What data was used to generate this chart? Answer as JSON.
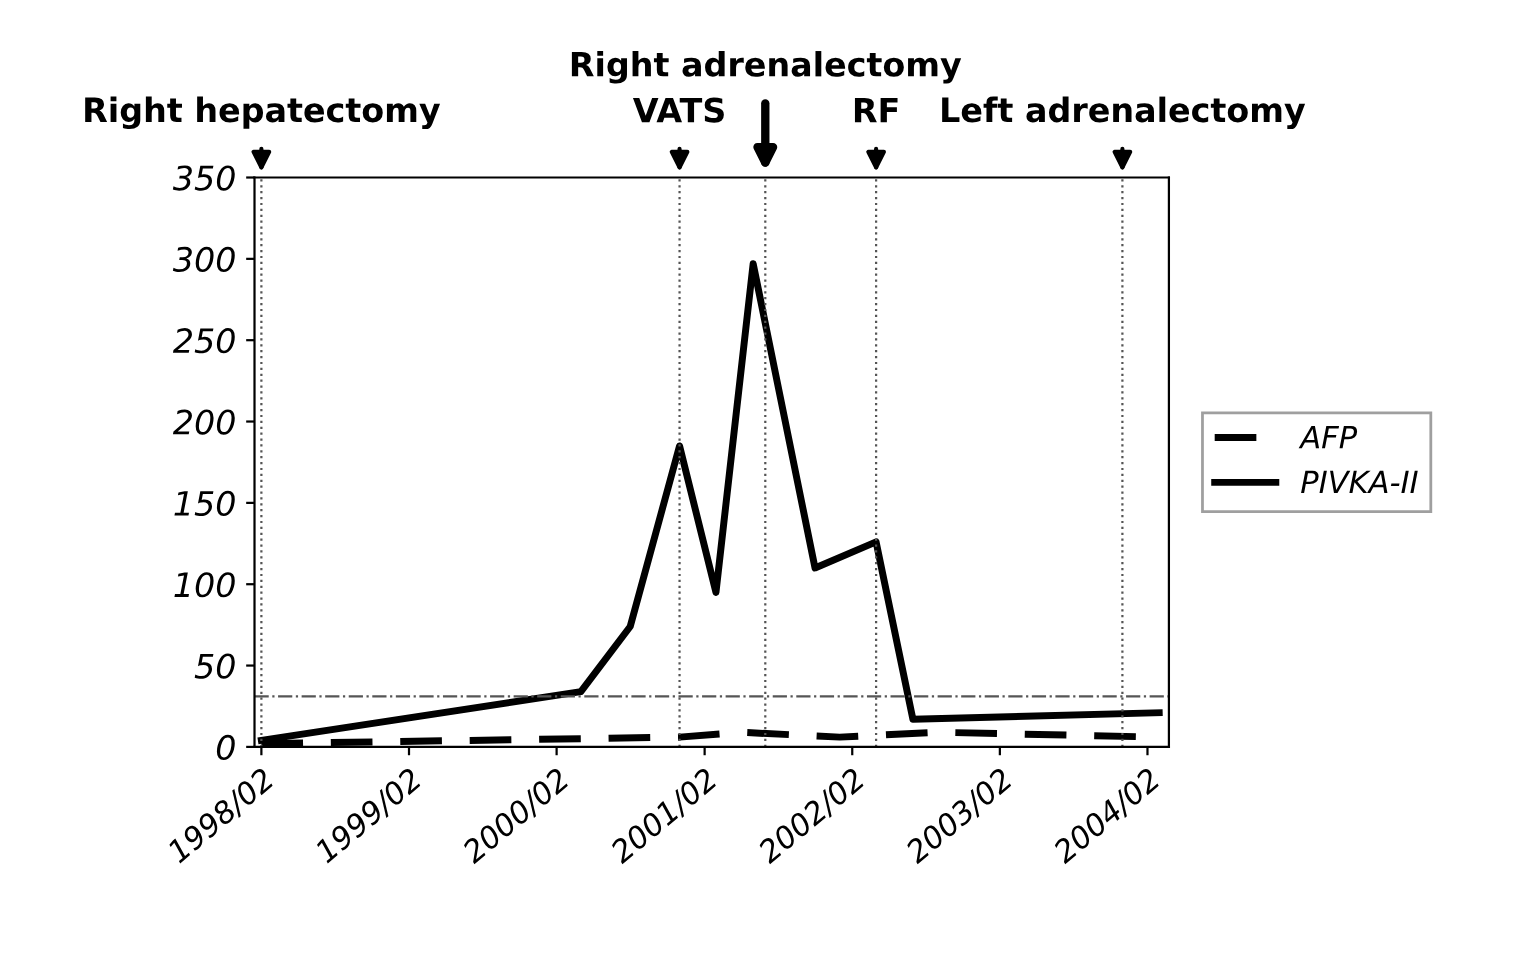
{
  "chart_data": {
    "type": "line",
    "x": [
      "1998-02",
      "2000-04",
      "2000-08",
      "2000-12",
      "2001-03",
      "2001-06",
      "2001-11",
      "2002-04",
      "2002-07",
      "2004-03"
    ],
    "series": [
      {
        "name": "AFP",
        "color": "#000000",
        "line_style": "dashed",
        "x": [
          "1998-02",
          "2000-12",
          "2001-05",
          "2002-01",
          "2002-09",
          "2004-03"
        ],
        "values": [
          2,
          6,
          9,
          6,
          9,
          6
        ]
      },
      {
        "name": "PIVKA-II",
        "color": "#000000",
        "line_style": "solid",
        "values": [
          4,
          34,
          74,
          185,
          95,
          297,
          110,
          126,
          17,
          21
        ]
      }
    ],
    "xlim": [
      "1998-01-15",
      "2004-03-25"
    ],
    "xticks": [
      {
        "value": "1998-02",
        "label": "1998/02"
      },
      {
        "value": "1999-02",
        "label": "1999/02"
      },
      {
        "value": "2000-02",
        "label": "2000/02"
      },
      {
        "value": "2001-02",
        "label": "2001/02"
      },
      {
        "value": "2002-02",
        "label": "2002/02"
      },
      {
        "value": "2003-02",
        "label": "2003/02"
      },
      {
        "value": "2004-02",
        "label": "2004/02"
      }
    ],
    "ylim": [
      0,
      350
    ],
    "yticks": [
      0,
      50,
      100,
      150,
      200,
      250,
      300,
      350
    ],
    "ref_lines": [
      {
        "axis": "x",
        "value": "1998-02",
        "label": "Right hepatectomy",
        "color": "#555555",
        "line_style": "dotted"
      },
      {
        "axis": "x",
        "value": "2000-12",
        "label": "VATS",
        "color": "#555555",
        "line_style": "dotted"
      },
      {
        "axis": "x",
        "value": "2001-07",
        "label": "Right adrenalectomy",
        "color": "#555555",
        "line_style": "dotted"
      },
      {
        "axis": "x",
        "value": "2002-04",
        "label": "RF",
        "color": "#555555",
        "line_style": "dotted"
      },
      {
        "axis": "x",
        "value": "2003-12",
        "label": "Left adrenalectomy",
        "color": "#555555",
        "line_style": "dotted"
      },
      {
        "axis": "y",
        "value": 31,
        "color": "#555555",
        "line_style": "dashdot"
      }
    ],
    "grid": false,
    "legend": "right",
    "marker": "none"
  }
}
